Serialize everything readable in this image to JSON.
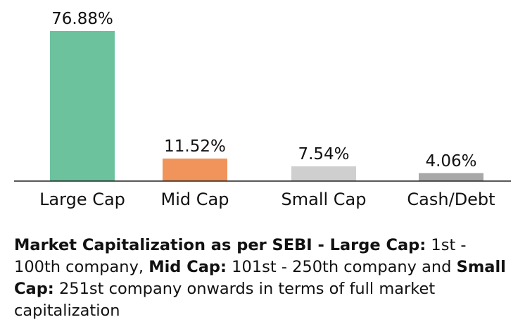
{
  "chart_data": {
    "type": "bar",
    "categories": [
      "Large Cap",
      "Mid Cap",
      "Small Cap",
      "Cash/Debt"
    ],
    "values": [
      76.88,
      11.52,
      7.54,
      4.06
    ],
    "value_labels": [
      "76.88%",
      "11.52%",
      "7.54%",
      "4.06%"
    ],
    "colors": [
      "#6cc29d",
      "#f0945b",
      "#cfcfcf",
      "#a8a8a8"
    ],
    "title": "",
    "xlabel": "",
    "ylabel": "",
    "ylim": [
      0,
      76.88
    ],
    "grid": false,
    "legend": "none"
  },
  "note": {
    "lead": "Market Capitalization as per SEBI - ",
    "large_cap_label": "Large Cap:",
    "large_cap_text": " 1st - 100th company, ",
    "mid_cap_label": "Mid Cap:",
    "mid_cap_text": " 101st - 250th company and ",
    "small_cap_label": "Small Cap:",
    "small_cap_text": " 251st company onwards in terms of full market capitalization"
  }
}
